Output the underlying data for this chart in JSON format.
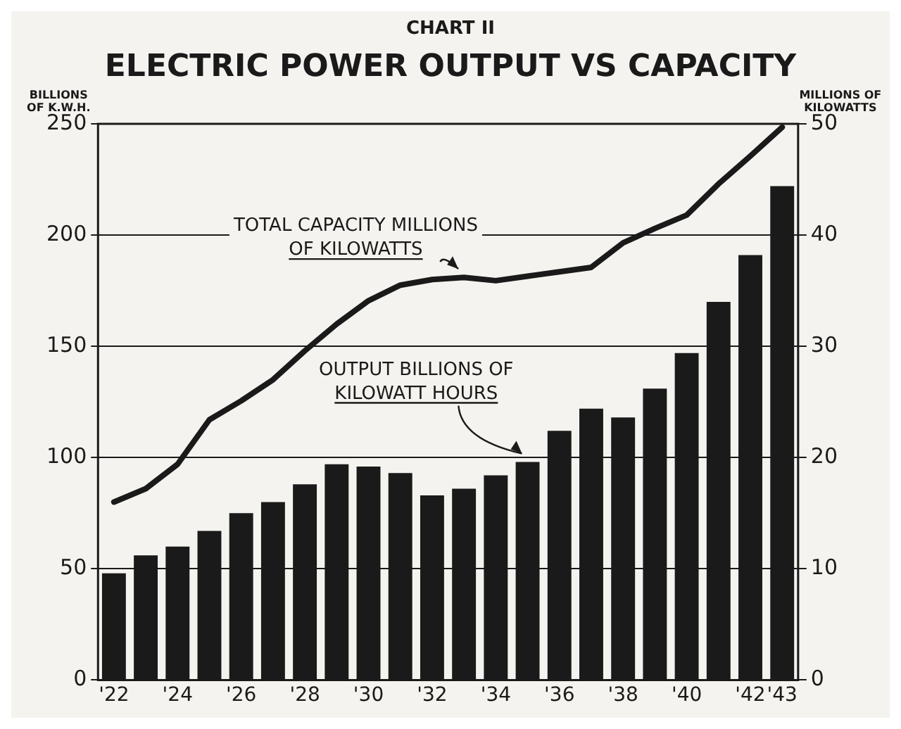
{
  "chart_data": {
    "type": "bar",
    "title": "ELECTRIC POWER OUTPUT VS CAPACITY",
    "ylabel": "BILLIONS OF K.W.H.",
    "y2label": "MILLIONS OF KILOWATTS",
    "annotations": [
      "CHART II"
    ],
    "categories": [
      "'22",
      null,
      "'24",
      null,
      "'26",
      null,
      "'28",
      null,
      "'30",
      null,
      "'32",
      null,
      "'34",
      null,
      "'36",
      null,
      "'38",
      null,
      "'40",
      null,
      "'42",
      "'43"
    ],
    "series": [
      {
        "name": "OUTPUT BILLIONS OF KILOWATT HOURS",
        "color": "#1a1a1a",
        "values": [
          48,
          56,
          60,
          67,
          75,
          80,
          88,
          97,
          96,
          93,
          83,
          86,
          92,
          98,
          112,
          122,
          118,
          131,
          147,
          170,
          191,
          222
        ]
      },
      {
        "name": "TOTAL CAPACITY MILLIONS OF KILOWATTS",
        "type": "line",
        "axis": "y2",
        "color": "#1a1a1a",
        "values": [
          16,
          17.2,
          19.4,
          23.4,
          25.1,
          27,
          29.6,
          32,
          34.1,
          35.5,
          36,
          36.2,
          35.9,
          36.3,
          36.7,
          37.1,
          39.3,
          40.6,
          41.8,
          44.6,
          47.1,
          49.7
        ]
      }
    ],
    "ylim": [
      0,
      250
    ],
    "yticks": [
      0,
      50,
      100,
      150,
      200,
      250
    ],
    "y2lim": [
      0,
      50
    ],
    "y2ticks": [
      0,
      10,
      20,
      30,
      40,
      50
    ],
    "grid": "y",
    "legend": false,
    "marker": "none"
  }
}
